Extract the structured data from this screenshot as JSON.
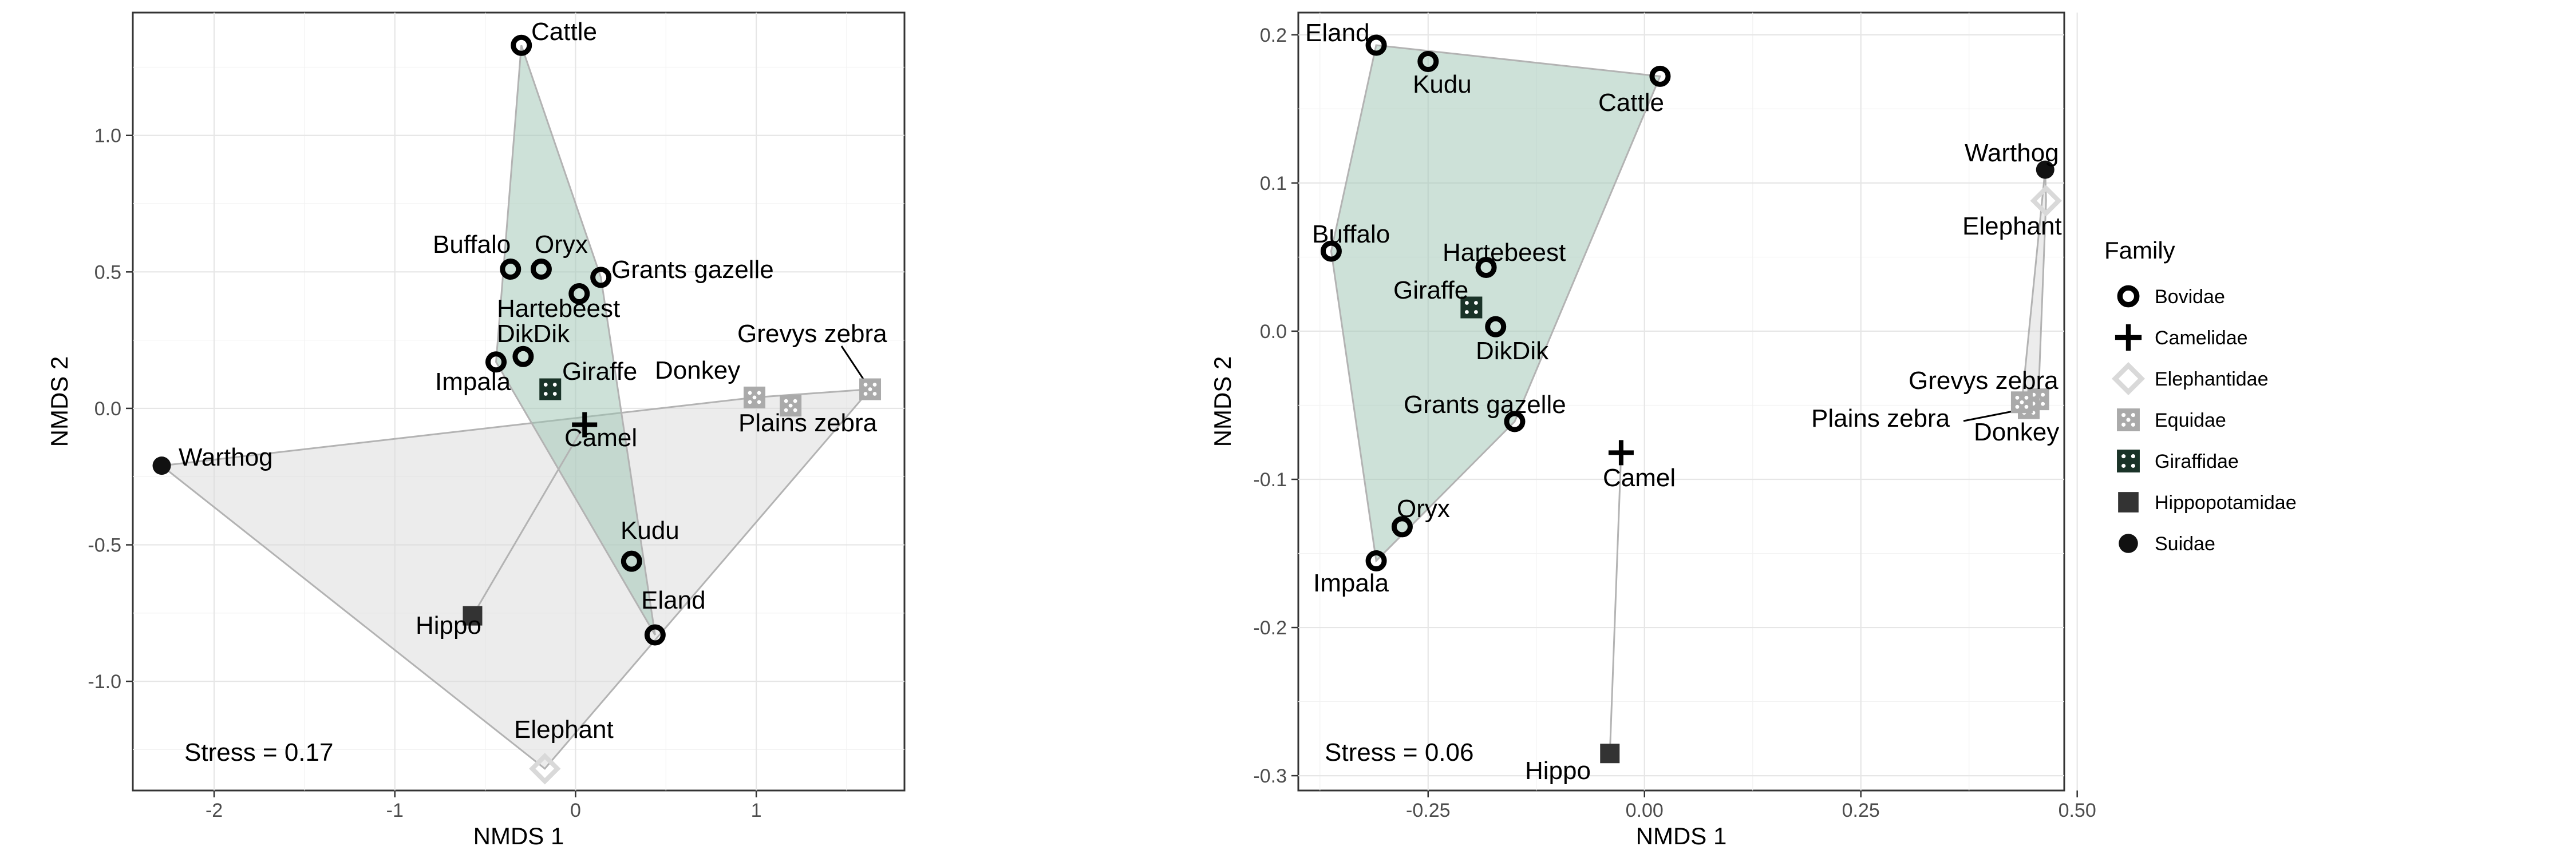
{
  "colors": {
    "Bovidae": "#000000",
    "Camelidae": "#000000",
    "Elephantidae": "#d9d9d9",
    "Equidae": "#aaaaaa",
    "Giraffidae": "#1a3328",
    "Hippopotamidae": "#333333",
    "Suidae": "#111111",
    "hull_green_fill": "#9cc3b1",
    "hull_gray_fill": "#d9d9d9",
    "hull_stroke": "#b3b3b3"
  },
  "chart_data": [
    {
      "type": "scatter",
      "xlabel": "NMDS 1",
      "ylabel": "NMDS 2",
      "xlim": [
        -2.45,
        1.82
      ],
      "ylim": [
        -1.4,
        1.45
      ],
      "xticks": [
        -2,
        -1,
        0,
        1
      ],
      "xtick_labels": [
        "-2",
        "-1",
        "0",
        "1"
      ],
      "yticks": [
        -1.0,
        -0.5,
        0.0,
        0.5,
        1.0
      ],
      "ytick_labels": [
        "-1.0",
        "-0.5",
        "0.0",
        "0.5",
        "1.0"
      ],
      "grid": true,
      "stress_label": "Stress =  0.17",
      "points": [
        {
          "label": "Cattle",
          "family": "Bovidae",
          "x": -0.3,
          "y": 1.33
        },
        {
          "label": "Buffalo",
          "family": "Bovidae",
          "x": -0.36,
          "y": 0.51
        },
        {
          "label": "Oryx",
          "family": "Bovidae",
          "x": -0.19,
          "y": 0.51
        },
        {
          "label": "Grants gazelle",
          "family": "Bovidae",
          "x": 0.14,
          "y": 0.48
        },
        {
          "label": "Hartebeest",
          "family": "Bovidae",
          "x": 0.02,
          "y": 0.42
        },
        {
          "label": "DikDik",
          "family": "Bovidae",
          "x": -0.29,
          "y": 0.19
        },
        {
          "label": "Impala",
          "family": "Bovidae",
          "x": -0.44,
          "y": 0.17
        },
        {
          "label": "Giraffe",
          "family": "Giraffidae",
          "x": -0.14,
          "y": 0.07
        },
        {
          "label": "Camel",
          "family": "Camelidae",
          "x": 0.05,
          "y": -0.06
        },
        {
          "label": "Donkey",
          "family": "Equidae",
          "x": 0.99,
          "y": 0.04
        },
        {
          "label": "Plains zebra",
          "family": "Equidae",
          "x": 1.19,
          "y": 0.01
        },
        {
          "label": "Grevys zebra",
          "family": "Equidae",
          "x": 1.63,
          "y": 0.07
        },
        {
          "label": "Warthog",
          "family": "Suidae",
          "x": -2.29,
          "y": -0.21
        },
        {
          "label": "Kudu",
          "family": "Bovidae",
          "x": 0.31,
          "y": -0.56
        },
        {
          "label": "Eland",
          "family": "Bovidae",
          "x": 0.44,
          "y": -0.83
        },
        {
          "label": "Hippo",
          "family": "Hippopotamidae",
          "x": -0.57,
          "y": -0.76
        },
        {
          "label": "Elephant",
          "family": "Elephantidae",
          "x": -0.17,
          "y": -1.32
        }
      ]
    },
    {
      "type": "scatter",
      "xlabel": "NMDS 1",
      "ylabel": "NMDS 2",
      "xlim": [
        -0.4,
        0.485
      ],
      "ylim": [
        -0.31,
        0.215
      ],
      "xticks": [
        -0.25,
        0.0,
        0.25,
        0.5
      ],
      "xtick_labels": [
        "-0.25",
        "0.00",
        "0.25",
        "0.50"
      ],
      "yticks": [
        -0.3,
        -0.2,
        -0.1,
        0.0,
        0.1,
        0.2
      ],
      "ytick_labels": [
        "-0.3",
        "-0.2",
        "-0.1",
        "0.0",
        "0.1",
        "0.2"
      ],
      "grid": true,
      "stress_label": "Stress =  0.06",
      "points": [
        {
          "label": "Eland",
          "family": "Bovidae",
          "x": -0.31,
          "y": 0.193
        },
        {
          "label": "Kudu",
          "family": "Bovidae",
          "x": -0.25,
          "y": 0.182
        },
        {
          "label": "Cattle",
          "family": "Bovidae",
          "x": 0.018,
          "y": 0.172
        },
        {
          "label": "Warthog",
          "family": "Suidae",
          "x": 0.463,
          "y": 0.109
        },
        {
          "label": "Elephant",
          "family": "Elephantidae",
          "x": 0.464,
          "y": 0.088
        },
        {
          "label": "Buffalo",
          "family": "Bovidae",
          "x": -0.362,
          "y": 0.054
        },
        {
          "label": "Hartebeest",
          "family": "Bovidae",
          "x": -0.183,
          "y": 0.043
        },
        {
          "label": "Giraffe",
          "family": "Giraffidae",
          "x": -0.2,
          "y": 0.016
        },
        {
          "label": "DikDik",
          "family": "Bovidae",
          "x": -0.172,
          "y": 0.003
        },
        {
          "label": "Grants gazelle",
          "family": "Bovidae",
          "x": -0.15,
          "y": -0.061
        },
        {
          "label": "Grevys zebra",
          "family": "Equidae",
          "x": 0.455,
          "y": -0.046
        },
        {
          "label": "Plains zebra",
          "family": "Equidae",
          "x": 0.444,
          "y": -0.052
        },
        {
          "label": "Donkey",
          "family": "Equidae",
          "x": 0.436,
          "y": -0.048
        },
        {
          "label": "Camel",
          "family": "Camelidae",
          "x": -0.027,
          "y": -0.082
        },
        {
          "label": "Oryx",
          "family": "Bovidae",
          "x": -0.28,
          "y": -0.132
        },
        {
          "label": "Impala",
          "family": "Bovidae",
          "x": -0.31,
          "y": -0.155
        },
        {
          "label": "Hippo",
          "family": "Hippopotamidae",
          "x": -0.04,
          "y": -0.285
        }
      ]
    }
  ],
  "legend": {
    "title": "Family",
    "placement": "right",
    "items": [
      {
        "label": "Bovidae",
        "shape": "open-circle-icon"
      },
      {
        "label": "Camelidae",
        "shape": "plus-icon"
      },
      {
        "label": "Elephantidae",
        "shape": "open-diamond-icon"
      },
      {
        "label": "Equidae",
        "shape": "square-dice-five-icon"
      },
      {
        "label": "Giraffidae",
        "shape": "square-dice-four-icon"
      },
      {
        "label": "Hippopotamidae",
        "shape": "filled-square-icon"
      },
      {
        "label": "Suidae",
        "shape": "filled-circle-icon"
      }
    ]
  }
}
